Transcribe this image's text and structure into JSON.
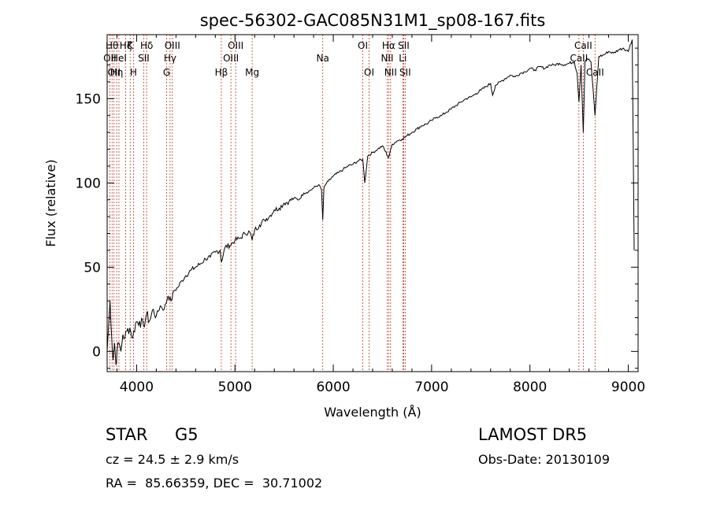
{
  "chart_data": {
    "type": "line",
    "title": "spec-56302-GAC085N31M1_sp08-167.fits",
    "xlabel": "Wavelength (Å)",
    "ylabel": "Flux (relative)",
    "xlim": [
      3700,
      9100
    ],
    "ylim": [
      -12,
      188
    ],
    "xticks": [
      4000,
      5000,
      6000,
      7000,
      8000,
      9000
    ],
    "yticks": [
      0,
      50,
      100,
      150
    ],
    "grid": false,
    "line_color": "#000000",
    "marker_line_color": "#c0392b",
    "series": [
      {
        "x": [
          3700,
          3730,
          3745,
          3760,
          3775,
          3790,
          3800,
          3820,
          3840,
          3860,
          3880,
          3900,
          3930,
          3960,
          3990,
          4030,
          4070,
          4100,
          4130,
          4170,
          4200,
          4240,
          4280,
          4320,
          4350,
          4380,
          4420,
          4460,
          4500,
          4550,
          4600,
          4650,
          4700,
          4750,
          4800,
          4850,
          4861,
          4900,
          4950,
          5000,
          5050,
          5100,
          5150,
          5175,
          5200,
          5250,
          5300,
          5350,
          5400,
          5450,
          5500,
          5550,
          5600,
          5650,
          5700,
          5750,
          5800,
          5850,
          5880,
          5893,
          5905,
          5920,
          5950,
          6000,
          6050,
          6100,
          6150,
          6200,
          6250,
          6300,
          6320,
          6350,
          6400,
          6450,
          6500,
          6563,
          6600,
          6650,
          6700,
          6750,
          6800,
          6850,
          6900,
          6950,
          7000,
          7050,
          7100,
          7150,
          7200,
          7250,
          7300,
          7350,
          7400,
          7450,
          7500,
          7550,
          7600,
          7620,
          7650,
          7700,
          7750,
          7800,
          7850,
          7900,
          7950,
          8000,
          8050,
          8100,
          8150,
          8200,
          8250,
          8300,
          8350,
          8400,
          8450,
          8480,
          8498,
          8520,
          8542,
          8560,
          8580,
          8620,
          8662,
          8700,
          8750,
          8800,
          8850,
          8900,
          8950,
          9000,
          9020,
          9040,
          9060
        ],
        "y": [
          0,
          30,
          10,
          -5,
          5,
          -8,
          0,
          5,
          0,
          10,
          8,
          12,
          14,
          8,
          17,
          18,
          15,
          22,
          18,
          25,
          21,
          27,
          25,
          33,
          30,
          36,
          38,
          42,
          45,
          48,
          50,
          52,
          55,
          56,
          59,
          60,
          53,
          62,
          63,
          66,
          67,
          70,
          71,
          66,
          72,
          75,
          78,
          80,
          84,
          85,
          88,
          89,
          91,
          90,
          94,
          95,
          97,
          99,
          96,
          78,
          97,
          99,
          101,
          104,
          106,
          108,
          110,
          111,
          113,
          114,
          100,
          116,
          118,
          120,
          122,
          115,
          123,
          125,
          126,
          128,
          130,
          132,
          134,
          135,
          137,
          139,
          140,
          142,
          144,
          146,
          148,
          150,
          151,
          153,
          155,
          157,
          159,
          152,
          158,
          160,
          162,
          164,
          163,
          165,
          166,
          168,
          167,
          169,
          168,
          170,
          170,
          171,
          170,
          171,
          172,
          165,
          148,
          170,
          130,
          172,
          174,
          172,
          140,
          175,
          176,
          178,
          177,
          179,
          180,
          178,
          182,
          185,
          60
        ]
      }
    ],
    "lines": [
      {
        "x": 3727,
        "label": "OII",
        "row": 1
      },
      {
        "x": 3750,
        "label": "Hθ",
        "row": 0
      },
      {
        "x": 3770,
        "label": "OII",
        "row": 2
      },
      {
        "x": 3797,
        "label": "Hη",
        "row": 2
      },
      {
        "x": 3820,
        "label": "HeI",
        "row": 1
      },
      {
        "x": 3889,
        "label": "Hζ",
        "row": 0
      },
      {
        "x": 3934,
        "label": "K",
        "row": 0
      },
      {
        "x": 3968,
        "label": "H",
        "row": 2
      },
      {
        "x": 4072,
        "label": "SII",
        "row": 1
      },
      {
        "x": 4102,
        "label": "Hδ",
        "row": 0
      },
      {
        "x": 4305,
        "label": "G",
        "row": 2
      },
      {
        "x": 4340,
        "label": "Hγ",
        "row": 1
      },
      {
        "x": 4363,
        "label": "OIII",
        "row": 0
      },
      {
        "x": 4861,
        "label": "Hβ",
        "row": 2
      },
      {
        "x": 4959,
        "label": "OIII",
        "row": 1
      },
      {
        "x": 5007,
        "label": "OIII",
        "row": 0
      },
      {
        "x": 5175,
        "label": "Mg",
        "row": 2
      },
      {
        "x": 5893,
        "label": "Na",
        "row": 1
      },
      {
        "x": 6300,
        "label": "OI",
        "row": 0
      },
      {
        "x": 6364,
        "label": "OI",
        "row": 2
      },
      {
        "x": 6548,
        "label": "NII",
        "row": 1
      },
      {
        "x": 6563,
        "label": "Hα",
        "row": 0
      },
      {
        "x": 6583,
        "label": "NII",
        "row": 2
      },
      {
        "x": 6707,
        "label": "Li",
        "row": 1
      },
      {
        "x": 6716,
        "label": "SII",
        "row": 0
      },
      {
        "x": 6731,
        "label": "SII",
        "row": 2
      },
      {
        "x": 8498,
        "label": "CaII",
        "row": 1
      },
      {
        "x": 8542,
        "label": "CaII",
        "row": 0
      },
      {
        "x": 8662,
        "label": "CaII",
        "row": 2
      }
    ]
  },
  "info": {
    "class_label": "STAR",
    "subclass": "G5",
    "cz": "cz = 24.5 ± 2.9 km/s",
    "coords": "RA =  85.66359, DEC =  30.71002",
    "survey": "LAMOST DR5",
    "obs_date": "Obs-Date: 20130109"
  }
}
